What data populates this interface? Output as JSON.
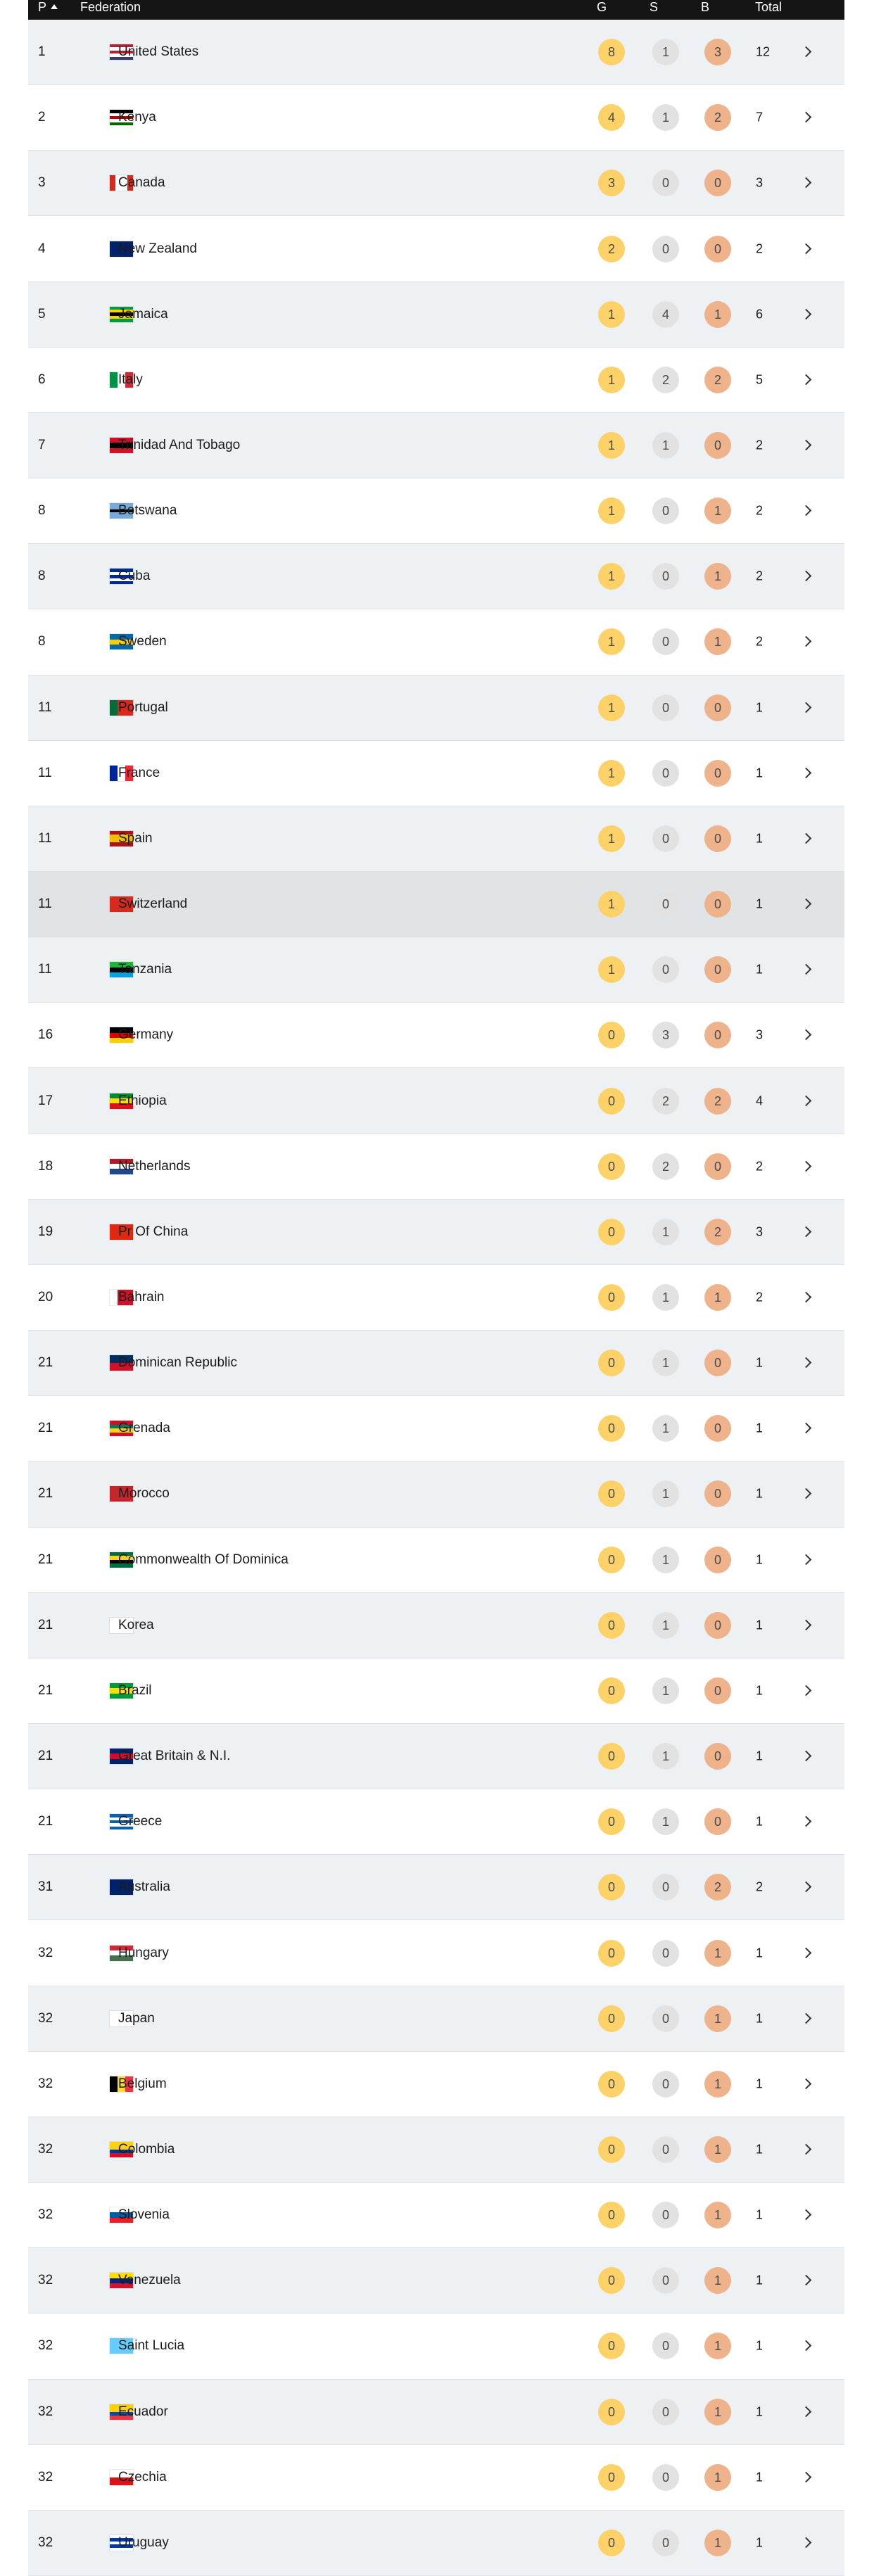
{
  "table": {
    "header": [
      "P",
      "Federation",
      "G",
      "S",
      "B",
      "Total"
    ],
    "rows": [
      [
        1,
        "United States",
        8,
        1,
        3,
        12
      ],
      [
        2,
        "Kenya",
        4,
        1,
        2,
        7
      ],
      [
        3,
        "Canada",
        3,
        0,
        0,
        3
      ],
      [
        4,
        "New Zealand",
        2,
        0,
        0,
        2
      ],
      [
        5,
        "Jamaica",
        1,
        4,
        1,
        6
      ],
      [
        6,
        "Italy",
        1,
        2,
        2,
        5
      ],
      [
        7,
        "Trinidad And Tobago",
        1,
        1,
        0,
        2
      ],
      [
        8,
        "Botswana",
        1,
        0,
        1,
        2
      ],
      [
        8,
        "Cuba",
        1,
        0,
        1,
        2
      ],
      [
        8,
        "Sweden",
        1,
        0,
        1,
        2
      ],
      [
        11,
        "Portugal",
        1,
        0,
        0,
        1
      ],
      [
        11,
        "France",
        1,
        0,
        0,
        1
      ],
      [
        11,
        "Spain",
        1,
        0,
        0,
        1
      ],
      [
        11,
        "Switzerland",
        1,
        0,
        0,
        1
      ],
      [
        11,
        "Tanzania",
        1,
        0,
        0,
        1
      ],
      [
        16,
        "Germany",
        0,
        3,
        0,
        3
      ],
      [
        17,
        "Ethiopia",
        0,
        2,
        2,
        4
      ],
      [
        18,
        "Netherlands",
        0,
        2,
        0,
        2
      ],
      [
        19,
        "Pr Of China",
        0,
        1,
        2,
        3
      ],
      [
        20,
        "Bahrain",
        0,
        1,
        1,
        2
      ],
      [
        21,
        "Dominican Republic",
        0,
        1,
        0,
        1
      ],
      [
        21,
        "Grenada",
        0,
        1,
        0,
        1
      ],
      [
        21,
        "Morocco",
        0,
        1,
        0,
        1
      ],
      [
        21,
        "Commonwealth Of Dominica",
        0,
        1,
        0,
        1
      ],
      [
        21,
        "Korea",
        0,
        1,
        0,
        1
      ],
      [
        21,
        "Brazil",
        0,
        1,
        0,
        1
      ],
      [
        21,
        "Great Britain & N.I.",
        0,
        1,
        0,
        1
      ],
      [
        21,
        "Greece",
        0,
        1,
        0,
        1
      ],
      [
        31,
        "Australia",
        0,
        0,
        2,
        2
      ],
      [
        32,
        "Hungary",
        0,
        0,
        1,
        1
      ],
      [
        32,
        "Japan",
        0,
        0,
        1,
        1
      ],
      [
        32,
        "Belgium",
        0,
        0,
        1,
        1
      ],
      [
        32,
        "Colombia",
        0,
        0,
        1,
        1
      ],
      [
        32,
        "Slovenia",
        0,
        0,
        1,
        1
      ],
      [
        32,
        "Venezuela",
        0,
        0,
        1,
        1
      ],
      [
        32,
        "Saint Lucia",
        0,
        0,
        1,
        1
      ],
      [
        32,
        "Ecuador",
        0,
        0,
        1,
        1
      ],
      [
        32,
        "Czechia",
        0,
        0,
        1,
        1
      ],
      [
        32,
        "Uruguay",
        0,
        0,
        1,
        1
      ]
    ]
  }
}
